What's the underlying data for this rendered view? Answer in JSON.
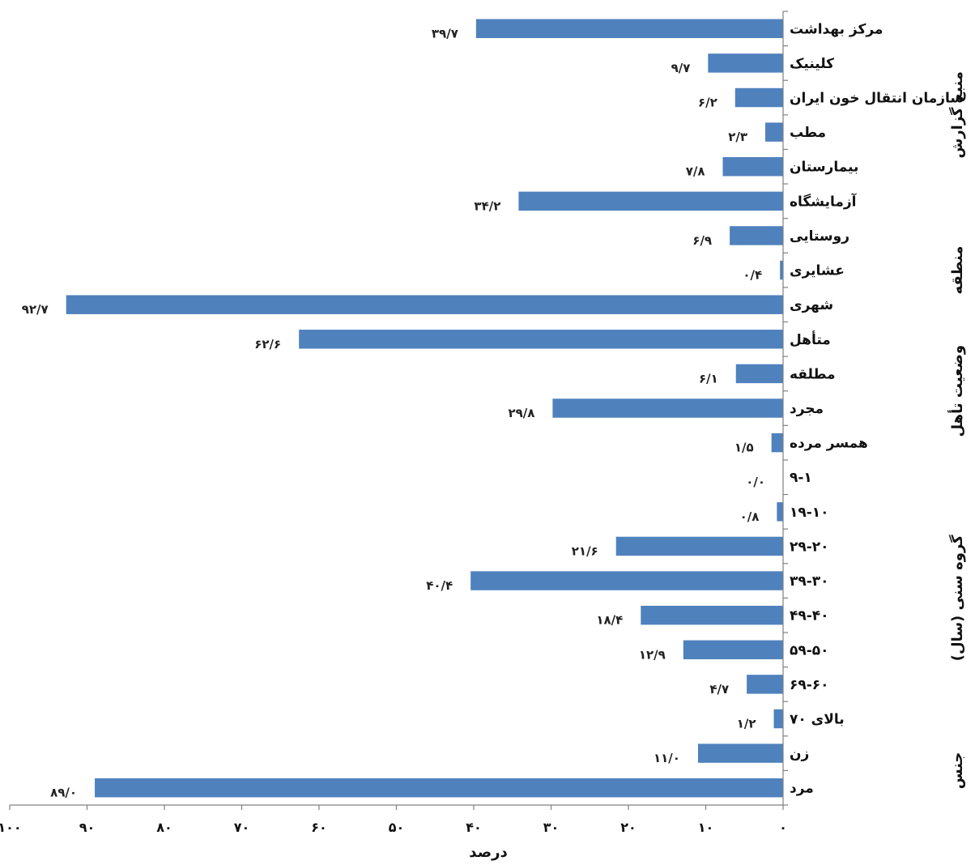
{
  "chart_data": {
    "type": "bar",
    "orientation": "horizontal",
    "xlabel": "درصد",
    "xlim": [
      0,
      100
    ],
    "x_reversed": true,
    "x_ticks": [
      "۰",
      "۱۰",
      "۲۰",
      "۳۰",
      "۴۰",
      "۵۰",
      "۶۰",
      "۷۰",
      "۸۰",
      "۹۰",
      "۱۰۰"
    ],
    "bar_color": "#4f81bd",
    "categories": [
      {
        "label": "مرکز بهداشت",
        "value": 39.7,
        "value_label": "۳۹/۷"
      },
      {
        "label": "کلینیک",
        "value": 9.7,
        "value_label": "۹/۷"
      },
      {
        "label": "سازمان انتقال خون ایران",
        "value": 6.2,
        "value_label": "۶/۲"
      },
      {
        "label": "مطب",
        "value": 2.3,
        "value_label": "۲/۳"
      },
      {
        "label": "بیمارستان",
        "value": 7.8,
        "value_label": "۷/۸"
      },
      {
        "label": "آزمایشگاه",
        "value": 34.2,
        "value_label": "۳۴/۲"
      },
      {
        "label": "روستایی",
        "value": 6.9,
        "value_label": "۶/۹"
      },
      {
        "label": "عشایری",
        "value": 0.4,
        "value_label": "۰/۴"
      },
      {
        "label": "شهری",
        "value": 92.7,
        "value_label": "۹۲/۷"
      },
      {
        "label": "متأهل",
        "value": 62.6,
        "value_label": "۶۲/۶"
      },
      {
        "label": "مطلقه",
        "value": 6.1,
        "value_label": "۶/۱"
      },
      {
        "label": "مجرد",
        "value": 29.8,
        "value_label": "۲۹/۸"
      },
      {
        "label": "همسر مرده",
        "value": 1.5,
        "value_label": "۱/۵"
      },
      {
        "label": "۹-۱",
        "value": 0.0,
        "value_label": "۰/۰"
      },
      {
        "label": "۱۹-۱۰",
        "value": 0.8,
        "value_label": "۰/۸"
      },
      {
        "label": "۲۹-۲۰",
        "value": 21.6,
        "value_label": "۲۱/۶"
      },
      {
        "label": "۳۹-۳۰",
        "value": 40.4,
        "value_label": "۴۰/۴"
      },
      {
        "label": "۴۹-۴۰",
        "value": 18.4,
        "value_label": "۱۸/۴"
      },
      {
        "label": "۵۹-۵۰",
        "value": 12.9,
        "value_label": "۱۲/۹"
      },
      {
        "label": "۶۹-۶۰",
        "value": 4.7,
        "value_label": "۴/۷"
      },
      {
        "label": "بالای ۷۰",
        "value": 1.2,
        "value_label": "۱/۲"
      },
      {
        "label": "زن",
        "value": 11.0,
        "value_label": "۱۱/۰"
      },
      {
        "label": "مرد",
        "value": 89.0,
        "value_label": "۸۹/۰"
      }
    ],
    "groups": [
      {
        "label": "منبع گزارش",
        "first": 0,
        "last": 5
      },
      {
        "label": "منطقه",
        "first": 6,
        "last": 8
      },
      {
        "label": "وضعیت تأهل",
        "first": 9,
        "last": 12
      },
      {
        "label": "گروه سنی (سال)",
        "first": 13,
        "last": 20
      },
      {
        "label": "جنس",
        "first": 21,
        "last": 22
      }
    ]
  }
}
